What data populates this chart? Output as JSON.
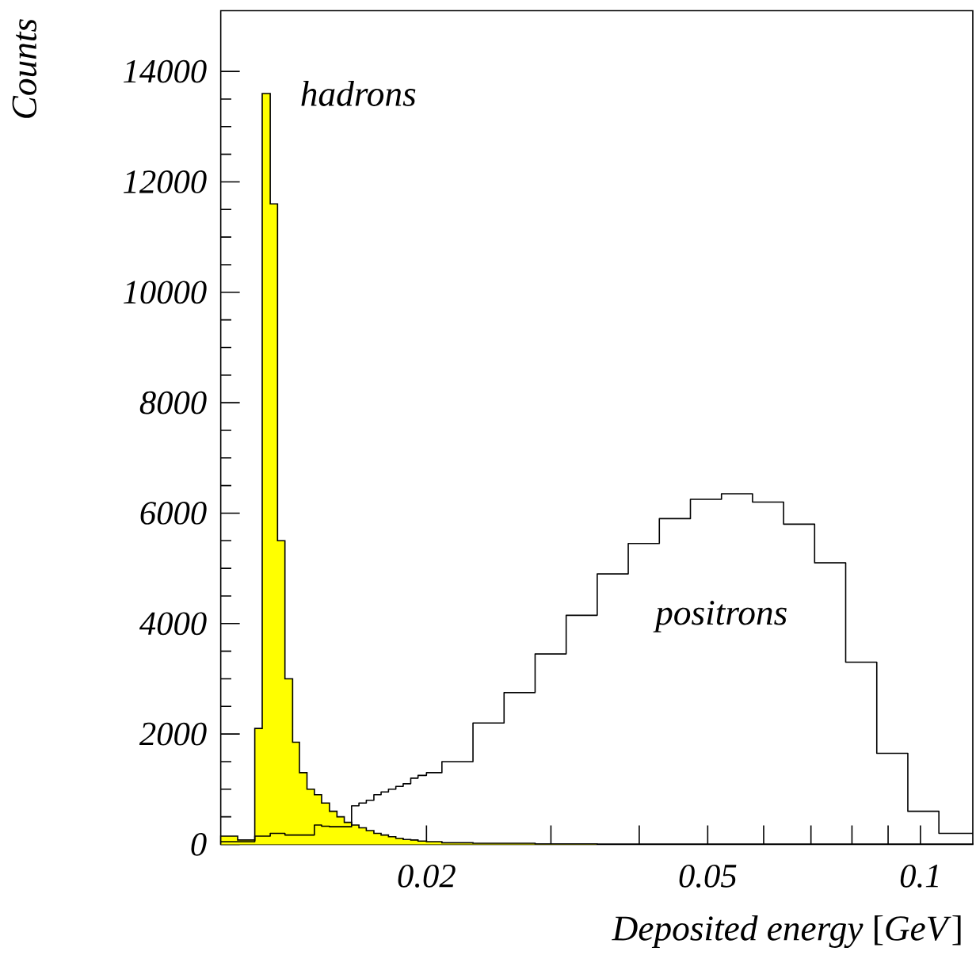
{
  "chart_data": {
    "type": "histogram",
    "xlabel": "*Deposited energy* [*GeV*]",
    "ylabel": "Counts",
    "log": "x",
    "xlim": [
      0.01023,
      0.1186
    ],
    "ylim": [
      0,
      15100
    ],
    "xticks": [
      0.02,
      {
        "value": 0.03,
        "label": null
      },
      {
        "value": 0.04,
        "label": null
      },
      0.05,
      {
        "value": 0.06,
        "label": null
      },
      {
        "value": 0.07,
        "label": null
      },
      {
        "value": 0.08,
        "label": null
      },
      {
        "value": 0.09,
        "label": null
      },
      0.1
    ],
    "yticks": [
      0,
      2000,
      4000,
      6000,
      8000,
      10000,
      12000,
      14000
    ],
    "bins": [
      0.01023,
      0.01081,
      0.01143,
      0.01171,
      0.01202,
      0.01231,
      0.01261,
      0.01293,
      0.01322,
      0.01355,
      0.01388,
      0.01421,
      0.01458,
      0.01494,
      0.0153,
      0.01567,
      0.01605,
      0.01644,
      0.01685,
      0.01725,
      0.01767,
      0.0181,
      0.01854,
      0.019,
      0.01946,
      0.02,
      0.021031,
      0.023271,
      0.02575,
      0.028492,
      0.031527,
      0.034885,
      0.0386,
      0.042711,
      0.04726,
      0.052293,
      0.057862,
      0.064025,
      0.070843,
      0.078388,
      0.086737,
      0.095974,
      0.106196,
      0.1186
    ],
    "series": [
      {
        "name": "hadrons",
        "color": "#ffff00",
        "values": [
          150,
          80,
          2100,
          13600,
          11600,
          5500,
          3000,
          1850,
          1300,
          1000,
          900,
          750,
          600,
          500,
          400,
          350,
          300,
          250,
          200,
          170,
          140,
          110,
          90,
          80,
          60,
          50,
          30,
          20,
          20,
          10,
          10,
          5,
          5,
          5,
          5,
          5,
          5,
          5,
          5,
          5,
          5,
          5,
          5
        ]
      },
      {
        "name": "positrons",
        "type": "step",
        "color": "#000000",
        "x": [
          0.01023,
          0.01081,
          0.01143,
          0.01171,
          0.01202,
          0.01231,
          0.01261,
          0.01293,
          0.01322,
          0.01355,
          0.01388,
          0.01421,
          0.01458,
          0.01494,
          0.0153,
          0.01567,
          0.01605,
          0.01644,
          0.01685,
          0.01725,
          0.01767,
          0.0181,
          0.01854,
          0.019,
          0.01946,
          0.02,
          0.021031,
          0.023271,
          0.02575,
          0.028492,
          0.031527,
          0.034885,
          0.0386,
          0.042711,
          0.04726,
          0.052293,
          0.057862,
          0.064025,
          0.070843,
          0.078388,
          0.086737,
          0.095974,
          0.106196,
          0.1186
        ],
        "values": [
          50,
          50,
          150,
          150,
          200,
          200,
          170,
          170,
          170,
          170,
          350,
          330,
          320,
          320,
          320,
          700,
          750,
          800,
          900,
          950,
          1000,
          1050,
          1100,
          1200,
          1250,
          1300,
          1500,
          2200,
          2750,
          3450,
          4150,
          4900,
          5450,
          5900,
          6250,
          6350,
          6200,
          5800,
          5100,
          3300,
          1650,
          600,
          200,
          200
        ]
      }
    ]
  }
}
